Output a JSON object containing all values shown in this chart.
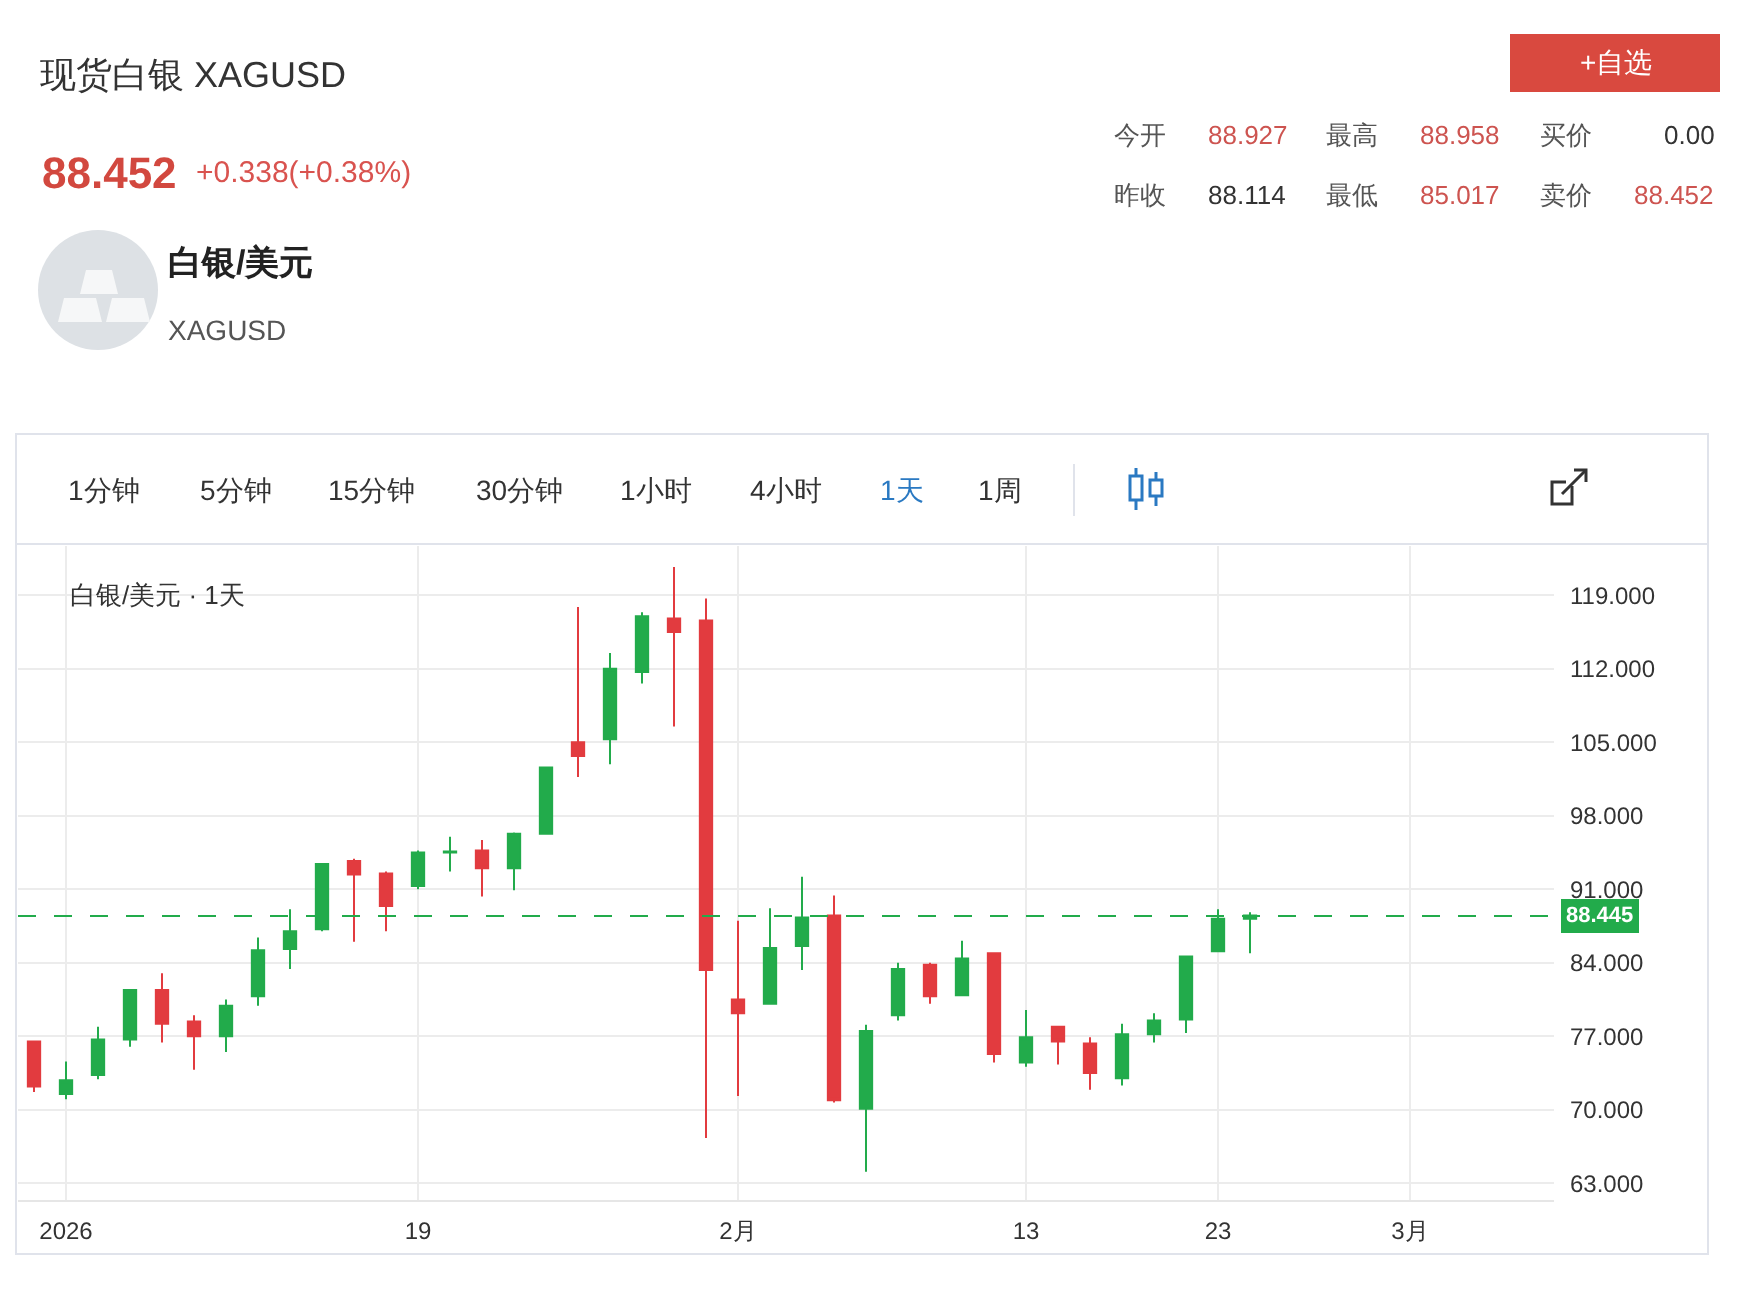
{
  "chart_data": {
    "type": "candlestick",
    "title": "现货白银 XAGUSD",
    "categories": [
      null,
      "2026",
      null,
      null,
      null,
      null,
      null,
      null,
      null,
      null,
      null,
      null,
      "19",
      null,
      null,
      null,
      null,
      null,
      null,
      null,
      null,
      null,
      "2月",
      null,
      null,
      null,
      null,
      null,
      null,
      null,
      null,
      "13",
      null,
      null,
      null,
      null,
      null,
      "23",
      null,
      null,
      null,
      null,
      null,
      "3月",
      null,
      null,
      null,
      null
    ],
    "ohlc": [
      [
        76.5,
        76.6,
        71.7,
        72.2
      ],
      [
        71.5,
        74.6,
        71.0,
        72.8
      ],
      [
        73.3,
        77.9,
        72.9,
        76.7
      ],
      [
        76.7,
        81.5,
        76.0,
        81.4
      ],
      [
        81.4,
        83.0,
        76.4,
        78.2
      ],
      [
        78.4,
        79.0,
        73.8,
        77.0
      ],
      [
        77.0,
        80.5,
        75.5,
        79.9
      ],
      [
        80.8,
        86.4,
        79.9,
        85.2
      ],
      [
        85.3,
        89.1,
        83.4,
        87.0
      ],
      [
        87.2,
        93.5,
        87.0,
        93.4
      ],
      [
        93.7,
        93.9,
        86.0,
        92.4
      ],
      [
        92.5,
        92.7,
        87.0,
        89.4
      ],
      [
        91.3,
        94.7,
        91.0,
        94.5
      ],
      [
        94.5,
        96.0,
        92.7,
        94.6
      ],
      [
        94.7,
        95.7,
        90.3,
        93.0
      ],
      [
        93.0,
        96.4,
        90.9,
        96.3
      ],
      [
        96.3,
        102.7,
        96.2,
        102.6
      ],
      [
        105.0,
        117.9,
        101.7,
        103.7
      ],
      [
        105.3,
        113.5,
        102.9,
        112.0
      ],
      [
        111.7,
        117.4,
        110.6,
        117.0
      ],
      [
        116.8,
        121.7,
        106.5,
        115.5
      ],
      [
        116.6,
        118.7,
        67.3,
        83.3
      ],
      [
        80.5,
        88.0,
        71.3,
        79.2
      ],
      [
        80.1,
        89.2,
        80.0,
        85.4
      ],
      [
        85.6,
        92.2,
        83.3,
        88.3
      ],
      [
        88.5,
        90.4,
        70.7,
        70.9
      ],
      [
        70.1,
        78.1,
        64.1,
        77.5
      ],
      [
        79.0,
        84.0,
        78.5,
        83.4
      ],
      [
        83.8,
        84.0,
        80.1,
        80.8
      ],
      [
        80.9,
        86.1,
        80.8,
        84.4
      ],
      [
        84.9,
        85.0,
        74.5,
        75.3
      ],
      [
        74.5,
        79.5,
        74.1,
        76.9
      ],
      [
        77.9,
        78.0,
        74.3,
        76.5
      ],
      [
        76.3,
        76.9,
        71.9,
        73.5
      ],
      [
        73.0,
        78.2,
        72.3,
        77.2
      ],
      [
        77.2,
        79.2,
        76.4,
        78.5
      ],
      [
        78.6,
        84.7,
        77.3,
        84.6
      ],
      [
        85.1,
        89.1,
        85.0,
        88.2
      ],
      [
        88.2,
        88.8,
        84.9,
        88.5
      ],
      null,
      null,
      null,
      null,
      null,
      null,
      null,
      null,
      null
    ],
    "colors": [
      "#e23b3f",
      "#22ab4b",
      "#22ab4b",
      "#22ab4b",
      "#e23b3f",
      "#e23b3f",
      "#22ab4b",
      "#22ab4b",
      "#22ab4b",
      "#22ab4b",
      "#e23b3f",
      "#e23b3f",
      "#22ab4b",
      "#22ab4b",
      "#e23b3f",
      "#22ab4b",
      "#22ab4b",
      "#e23b3f",
      "#22ab4b",
      "#22ab4b",
      "#e23b3f",
      "#e23b3f",
      "#e23b3f",
      "#22ab4b",
      "#22ab4b",
      "#e23b3f",
      "#22ab4b",
      "#22ab4b",
      "#e23b3f",
      "#22ab4b",
      "#e23b3f",
      "#22ab4b",
      "#e23b3f",
      "#e23b3f",
      "#22ab4b",
      "#22ab4b",
      "#22ab4b",
      "#22ab4b",
      "#22ab4b",
      null,
      null,
      null,
      null,
      null,
      null,
      null,
      null,
      null
    ],
    "ylim": [
      61.4,
      123.7
    ],
    "yticks": [
      {
        "value": 63,
        "label": "63.000"
      },
      {
        "value": 70,
        "label": "70.000"
      },
      {
        "value": 77,
        "label": "77.000"
      },
      {
        "value": 84,
        "label": "84.000"
      },
      {
        "value": 91,
        "label": "91.000"
      },
      {
        "value": 98,
        "label": "98.000"
      },
      {
        "value": 105,
        "label": "105.000"
      },
      {
        "value": 112,
        "label": "112.000"
      },
      {
        "value": 119,
        "label": "119.000"
      }
    ],
    "grid": true,
    "ref_lines": [
      {
        "axis": "y",
        "value": 88.445,
        "label": "88.445",
        "color": "#22ab4b",
        "line_style": "dashed"
      }
    ],
    "annotations": [
      "88.452",
      "+0.338(+0.38%)",
      "+自选",
      "今开",
      "88.927",
      "最高",
      "88.958",
      "买价",
      "0.00",
      "昨收",
      "88.114",
      "最低",
      "85.017",
      "卖价",
      "88.452",
      "白银/美元",
      "XAGUSD",
      "1分钟",
      "5分钟",
      "15分钟",
      "30分钟",
      "1小时",
      "4小时",
      "1天",
      "1周",
      "白银/美元 · 1天"
    ]
  }
}
